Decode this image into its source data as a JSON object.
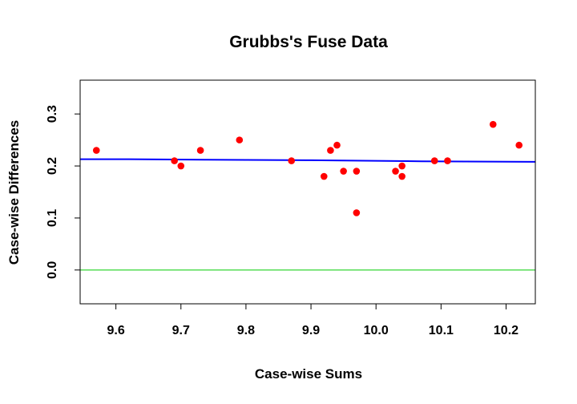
{
  "chart_data": {
    "type": "scatter",
    "title": "Grubbs's Fuse Data",
    "xlabel": "Case-wise Sums",
    "ylabel": "Case-wise Differences",
    "xlim": [
      9.545,
      10.245
    ],
    "ylim": [
      -0.065,
      0.365
    ],
    "x_ticks": [
      "9.6",
      "9.7",
      "9.8",
      "9.9",
      "10.0",
      "10.1",
      "10.2"
    ],
    "y_ticks": [
      "0.0",
      "0.1",
      "0.2",
      "0.3"
    ],
    "grid": false,
    "points": {
      "color": "#ff0000",
      "x": [
        9.57,
        9.69,
        9.7,
        9.73,
        9.79,
        9.87,
        9.92,
        9.93,
        9.94,
        9.95,
        9.97,
        9.97,
        10.03,
        10.04,
        10.04,
        10.09,
        10.11,
        10.18,
        10.22
      ],
      "y": [
        0.23,
        0.21,
        0.2,
        0.23,
        0.25,
        0.21,
        0.18,
        0.23,
        0.24,
        0.19,
        0.19,
        0.11,
        0.19,
        0.2,
        0.18,
        0.21,
        0.21,
        0.28,
        0.24
      ]
    },
    "trend_line": {
      "color": "#0000ff",
      "x": [
        9.545,
        9.62,
        9.74,
        9.9,
        10.07,
        10.245
      ],
      "y": [
        0.213,
        0.213,
        0.212,
        0.211,
        0.209,
        0.208
      ]
    },
    "reference_line": {
      "color": "#00cc00",
      "y": 0.0
    }
  }
}
